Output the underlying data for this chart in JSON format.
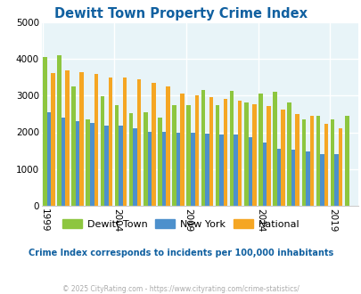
{
  "title": "Dewitt Town Property Crime Index",
  "title_color": "#1060a0",
  "subtitle": "Crime Index corresponds to incidents per 100,000 inhabitants",
  "subtitle_color": "#1060a0",
  "footer": "© 2025 CityRating.com - https://www.cityrating.com/crime-statistics/",
  "footer_color": "#aaaaaa",
  "years": [
    1999,
    2000,
    2001,
    2002,
    2003,
    2004,
    2005,
    2006,
    2007,
    2008,
    2009,
    2010,
    2011,
    2012,
    2013,
    2014,
    2015,
    2016,
    2017,
    2018,
    2019,
    2020
  ],
  "dewitt_town": [
    4060,
    4090,
    3250,
    2360,
    2990,
    2730,
    2530,
    2540,
    2390,
    2730,
    2750,
    3160,
    2730,
    3130,
    2820,
    3060,
    3110,
    2810,
    2350,
    2460,
    2350,
    2460
  ],
  "new_york": [
    2540,
    2410,
    2310,
    2250,
    2180,
    2170,
    2110,
    2010,
    2010,
    1980,
    1980,
    1960,
    1950,
    1950,
    1870,
    1710,
    1560,
    1520,
    1470,
    1400,
    1400,
    0
  ],
  "national": [
    3610,
    3680,
    3630,
    3600,
    3500,
    3500,
    3450,
    3340,
    3260,
    3060,
    3000,
    2950,
    2920,
    2870,
    2760,
    2720,
    2610,
    2500,
    2460,
    2220,
    2120,
    0
  ],
  "dewitt_color": "#8dc63f",
  "ny_color": "#4d90cc",
  "national_color": "#f5a623",
  "bg_color": "#e8f4f8",
  "ylim": [
    0,
    5000
  ],
  "yticks": [
    0,
    1000,
    2000,
    3000,
    4000,
    5000
  ],
  "xtick_years": [
    1999,
    2004,
    2009,
    2014,
    2019
  ],
  "bar_width": 0.28
}
